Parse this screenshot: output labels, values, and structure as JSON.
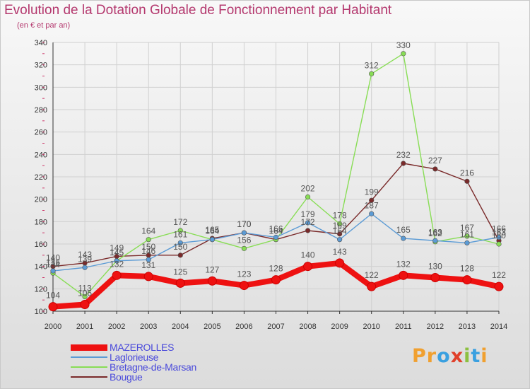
{
  "header": {
    "title": "Evolution de la Dotation Globale de Fonctionnement par Habitant",
    "subtitle": "(en € et par an)"
  },
  "logo": {
    "text": "Proxiti",
    "letters": [
      "P",
      "r",
      "o",
      "x",
      "i",
      "t",
      "i"
    ],
    "colors": [
      "#f0a030",
      "#f0a030",
      "#3aa0e0",
      "#e0402a",
      "#8cc040",
      "#3aa0e0",
      "#f0a030"
    ]
  },
  "chart_data": {
    "type": "line",
    "title": "Evolution de la Dotation Globale de Fonctionnement par Habitant",
    "subtitle": "(en € et par an)",
    "xlabel": "",
    "ylabel": "",
    "ylim": [
      100,
      340
    ],
    "yticks": [
      100,
      120,
      140,
      160,
      180,
      200,
      220,
      240,
      260,
      280,
      300,
      320,
      340
    ],
    "categories": [
      "2000",
      "2001",
      "2002",
      "2003",
      "2004",
      "2005",
      "2006",
      "2007",
      "2008",
      "2009",
      "2010",
      "2011",
      "2012",
      "2013",
      "2014"
    ],
    "grid": true,
    "legend_position": "bottom-left",
    "series": [
      {
        "name": "MAZEROLLES",
        "color": "#ee1111",
        "values": [
          104,
          106,
          132,
          131,
          125,
          127,
          123,
          128,
          140,
          143,
          122,
          132,
          130,
          128,
          122
        ],
        "labels": [
          "104",
          "106",
          "132",
          "131",
          "125",
          "127",
          "123",
          "128",
          "140",
          "143",
          "122",
          "132",
          "130",
          "128",
          "122"
        ]
      },
      {
        "name": "Laglorieuse",
        "color": "#5b9bd5",
        "values": [
          136,
          139,
          145,
          146,
          161,
          164,
          170,
          166,
          179,
          164,
          187,
          165,
          163,
          161,
          166
        ],
        "labels": [
          "136",
          "139",
          "145",
          "146",
          "161",
          "164",
          "170",
          "166",
          "179",
          "164",
          "187",
          "165",
          "163",
          "161",
          "166"
        ]
      },
      {
        "name": "Bretagne-de-Marsan",
        "color": "#88dd55",
        "values": [
          134,
          113,
          145,
          164,
          172,
          164,
          156,
          164,
          202,
          178,
          312,
          330,
          162,
          167,
          160
        ],
        "labels": [
          "134",
          "113",
          "145",
          "164",
          "172",
          "164",
          "156",
          "164",
          "202",
          "178",
          "312",
          "330",
          "162",
          "167",
          "160"
        ]
      },
      {
        "name": "Bougue",
        "color": "#7a2a2a",
        "values": [
          140,
          143,
          149,
          150,
          150,
          165,
          170,
          164,
          172,
          169,
          199,
          232,
          227,
          216,
          163
        ],
        "labels": [
          "140",
          "143",
          "149",
          "150",
          "150",
          "165",
          "170",
          "164",
          "172",
          "169",
          "199",
          "232",
          "227",
          "216",
          "163"
        ]
      }
    ]
  }
}
